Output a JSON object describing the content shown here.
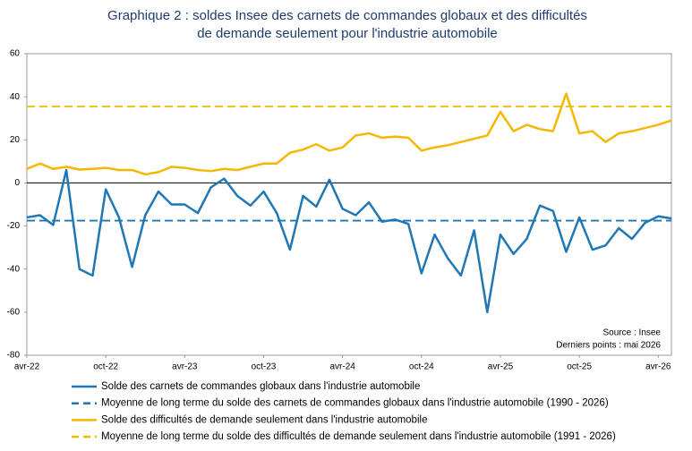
{
  "chart_data": {
    "type": "line",
    "title": [
      "Graphique 2 : soldes Insee des carnets de commandes globaux et des difficultés",
      "de demande seulement pour l'industrie automobile"
    ],
    "categories": [
      "avr-22",
      null,
      null,
      null,
      null,
      null,
      "oct-22",
      null,
      null,
      null,
      null,
      null,
      "avr-23",
      null,
      null,
      null,
      null,
      null,
      "oct-23",
      null,
      null,
      null,
      null,
      null,
      "avr-24",
      null,
      null,
      null,
      null,
      null,
      "oct-24",
      null,
      null,
      null,
      null,
      null,
      "avr-25",
      null,
      null,
      null,
      null,
      null,
      "oct-25",
      null,
      null,
      null,
      null,
      null,
      "avr-26",
      null
    ],
    "series": [
      {
        "name": "Solde des carnets de commandes globaux dans l'industrie automobile",
        "color": "#1f77b4",
        "values": [
          -16,
          -15,
          -19.5,
          6,
          -40,
          -43,
          -3,
          -16,
          -39,
          -15,
          -4,
          -10,
          -10,
          -14,
          -2,
          2,
          -6,
          -10.5,
          -4,
          -14,
          -31,
          -6,
          -11,
          1.5,
          -12,
          -15,
          -9,
          -18,
          -17,
          -19,
          -42,
          -24,
          -35,
          -43,
          -22,
          -60,
          -24,
          -33,
          -26,
          -10.5,
          -13,
          -32,
          -16,
          -31,
          -29,
          -21,
          -26,
          -18.5,
          -15.5,
          -16.5
        ]
      },
      {
        "name": "Moyenne de long terme du solde des carnets de commandes globaux dans l'industrie automobile (1990 - 2026)",
        "color": "#1f77b4",
        "dash": true,
        "value": -17.5
      },
      {
        "name": "Solde des difficultés de demande seulement dans l'industrie automobile",
        "color": "#f5b800",
        "values": [
          6.5,
          9,
          6.5,
          7.5,
          6.2,
          6.5,
          7,
          6,
          6,
          4,
          5,
          7.5,
          7,
          6,
          5.5,
          6.5,
          6,
          7.5,
          9,
          9,
          14,
          15.5,
          18,
          15,
          16.5,
          22,
          23,
          21,
          21.5,
          21,
          15,
          16.5,
          17.5,
          19,
          20.5,
          22,
          33,
          24,
          27,
          25,
          24,
          41.5,
          23,
          24,
          19,
          23,
          24,
          25.5,
          27,
          29
        ]
      },
      {
        "name": "Moyenne de long terme du solde des difficultés de demande seulement dans l'industrie automobile (1991 - 2026)",
        "color": "#f5b800",
        "dash": true,
        "value": 35.5
      }
    ],
    "ylim": [
      -80,
      60
    ],
    "yticks": [
      60,
      40,
      20,
      0,
      -20,
      -40,
      -60,
      -80
    ],
    "annotations": [
      "Source : Insee",
      "Derniers points : mai 2026"
    ]
  }
}
